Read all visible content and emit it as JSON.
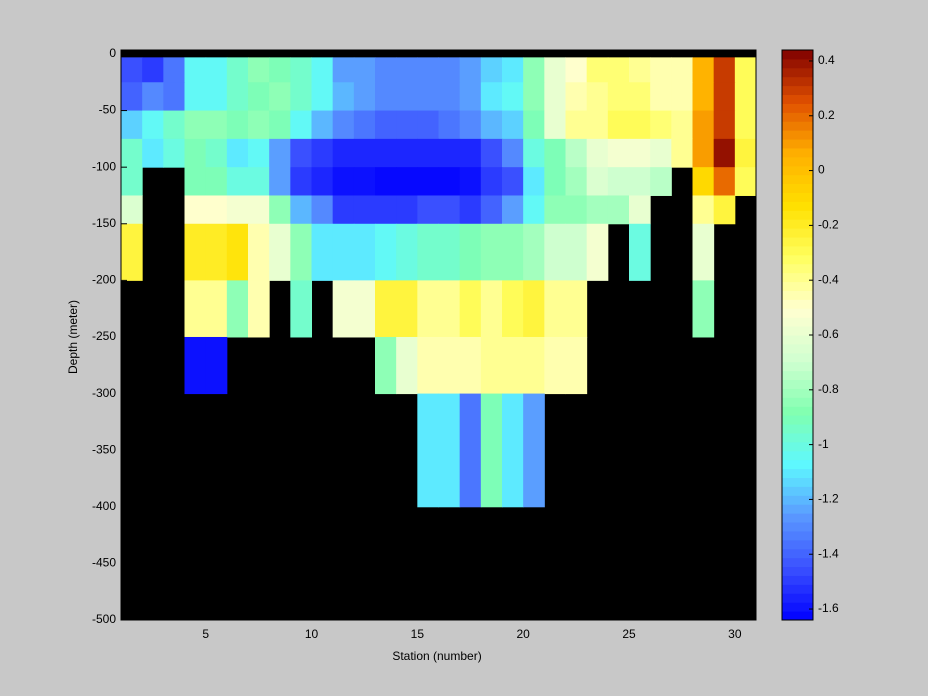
{
  "chart_data": {
    "type": "heatmap",
    "xlabel": "Station (number)",
    "ylabel": "Depth (meter)",
    "x_edges": [
      1,
      2,
      3,
      4,
      5,
      6,
      7,
      8,
      9,
      10,
      11,
      12,
      13,
      14,
      15,
      16,
      17,
      18,
      19,
      20,
      21,
      22,
      23,
      24,
      25,
      26,
      27,
      28,
      29,
      30,
      31
    ],
    "y_edges": [
      -3,
      -25,
      -50,
      -75,
      -100,
      -125,
      -150,
      -200,
      -250,
      -300,
      -400
    ],
    "values": [
      [
        -1.45,
        -1.5,
        -1.35,
        -1.05,
        -1.05,
        -0.95,
        -0.85,
        -0.9,
        -0.95,
        -1.05,
        -1.25,
        -1.25,
        -1.3,
        -1.3,
        -1.3,
        -1.3,
        -1.25,
        -1.15,
        -1.1,
        -0.85,
        -0.6,
        -0.5,
        -0.35,
        -0.35,
        -0.4,
        -0.45,
        -0.45,
        0.05,
        0.3,
        -0.3
      ],
      [
        -1.4,
        -1.3,
        -1.35,
        -1.05,
        -1.05,
        -0.95,
        -0.9,
        -0.85,
        -0.95,
        -1.05,
        -1.2,
        -1.25,
        -1.3,
        -1.3,
        -1.3,
        -1.3,
        -1.25,
        -1.1,
        -1.05,
        -0.85,
        -0.6,
        -0.45,
        -0.4,
        -0.35,
        -0.35,
        -0.45,
        -0.45,
        0.05,
        0.3,
        -0.3
      ],
      [
        -1.15,
        -1.05,
        -0.95,
        -0.85,
        -0.85,
        -0.9,
        -0.85,
        -0.9,
        -1.05,
        -1.2,
        -1.3,
        -1.35,
        -1.4,
        -1.4,
        -1.4,
        -1.35,
        -1.3,
        -1.2,
        -1.15,
        -0.9,
        -0.6,
        -0.4,
        -0.4,
        -0.3,
        -0.3,
        -0.35,
        -0.4,
        0.1,
        0.3,
        -0.3
      ],
      [
        -0.95,
        -1.1,
        -1.0,
        -0.9,
        -0.95,
        -1.1,
        -1.05,
        -1.25,
        -1.45,
        -1.5,
        -1.55,
        -1.55,
        -1.55,
        -1.55,
        -1.55,
        -1.55,
        -1.55,
        -1.45,
        -1.3,
        -1.0,
        -0.9,
        -0.75,
        -0.6,
        -0.55,
        -0.55,
        -0.6,
        -0.4,
        0.1,
        0.4,
        -0.25
      ],
      [
        -0.95,
        null,
        null,
        -0.9,
        -0.9,
        -1.0,
        -1.0,
        -1.25,
        -1.5,
        -1.55,
        -1.6,
        -1.6,
        -1.62,
        -1.62,
        -1.62,
        -1.62,
        -1.6,
        -1.5,
        -1.45,
        -1.1,
        -0.9,
        -0.8,
        -0.65,
        -0.7,
        -0.7,
        -0.75,
        null,
        -0.1,
        0.2,
        -0.3
      ],
      [
        -0.65,
        null,
        null,
        -0.5,
        -0.5,
        -0.55,
        -0.55,
        -0.85,
        -1.2,
        -1.3,
        -1.5,
        -1.5,
        -1.5,
        -1.5,
        -1.45,
        -1.45,
        -1.5,
        -1.4,
        -1.25,
        -1.05,
        -0.85,
        -0.85,
        -0.8,
        -0.8,
        -0.6,
        null,
        null,
        -0.4,
        -0.25,
        null
      ],
      [
        -0.25,
        null,
        null,
        -0.2,
        -0.2,
        -0.15,
        -0.45,
        -0.6,
        -0.85,
        -1.1,
        -1.1,
        -1.1,
        -1.05,
        -1.0,
        -0.95,
        -0.95,
        -0.9,
        -0.85,
        -0.85,
        -0.8,
        -0.7,
        -0.7,
        -0.55,
        null,
        -1.0,
        null,
        null,
        -0.6,
        null,
        null
      ],
      [
        null,
        null,
        null,
        -0.4,
        -0.4,
        -0.85,
        -0.45,
        null,
        -0.95,
        null,
        -0.55,
        -0.55,
        -0.25,
        -0.25,
        -0.4,
        -0.4,
        -0.3,
        -0.4,
        -0.3,
        -0.25,
        -0.4,
        -0.4,
        null,
        null,
        null,
        null,
        null,
        -0.85,
        null,
        null
      ],
      [
        null,
        null,
        null,
        -1.6,
        -1.6,
        null,
        null,
        null,
        null,
        null,
        null,
        null,
        -0.85,
        -0.6,
        -0.45,
        -0.45,
        -0.45,
        -0.4,
        -0.4,
        -0.4,
        -0.45,
        -0.45,
        null,
        null,
        null,
        null,
        null,
        null,
        null,
        null
      ],
      [
        null,
        null,
        null,
        null,
        null,
        null,
        null,
        null,
        null,
        null,
        null,
        null,
        null,
        null,
        -1.1,
        -1.1,
        -1.35,
        -0.9,
        -1.1,
        -1.25,
        null,
        null,
        null,
        null,
        null,
        null,
        null,
        null,
        null,
        null
      ]
    ],
    "xlim": [
      1,
      31
    ],
    "ylim": [
      -500,
      3.5
    ],
    "xticks": [
      5,
      10,
      15,
      20,
      25,
      30
    ],
    "yticks": [
      0,
      -50,
      -100,
      -150,
      -200,
      -250,
      -300,
      -350,
      -400,
      -450,
      -500
    ],
    "background": "#000000",
    "clim": [
      -1.64,
      0.44
    ],
    "cticks": [
      0.4,
      0.2,
      0,
      -0.2,
      -0.4,
      -0.6,
      -0.8,
      -1,
      -1.2,
      -1.4,
      -1.6
    ],
    "colormap": [
      "#0000ff",
      "#3a50ff",
      "#5a98ff",
      "#5ef8ff",
      "#80ffb0",
      "#d0ffd0",
      "#ffffd0",
      "#ffff60",
      "#ffe000",
      "#ffb000",
      "#e05000",
      "#800000"
    ]
  }
}
